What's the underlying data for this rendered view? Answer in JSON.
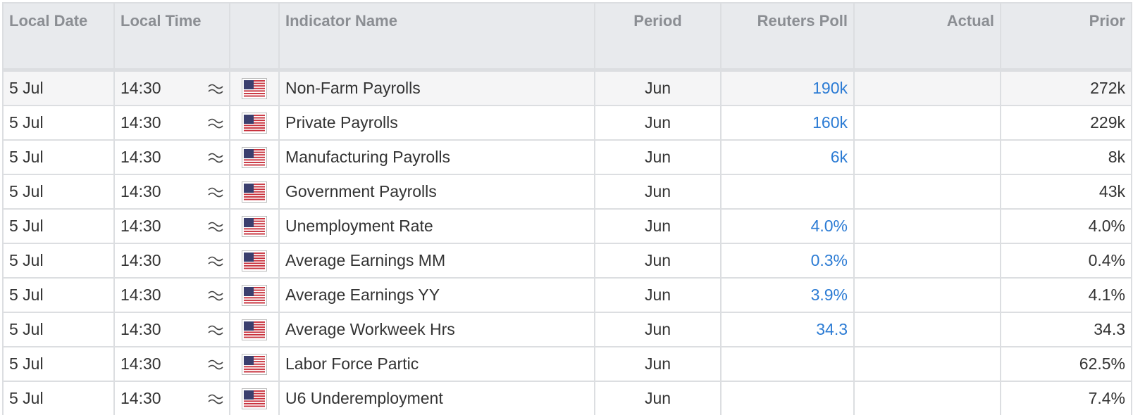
{
  "table": {
    "headers": [
      "Local Date",
      "Local Time",
      "Indicator Name",
      "Period",
      "Reuters Poll",
      "Actual",
      "Prior"
    ],
    "rows": [
      {
        "date": "5 Jul",
        "time": "14:30",
        "name": "Non-Farm Payrolls",
        "period": "Jun",
        "poll": "190k",
        "prior": "272k"
      },
      {
        "date": "5 Jul",
        "time": "14:30",
        "name": "Private Payrolls",
        "period": "Jun",
        "poll": "160k",
        "prior": "229k"
      },
      {
        "date": "5 Jul",
        "time": "14:30",
        "name": "Manufacturing Payrolls",
        "period": "Jun",
        "poll": "6k",
        "prior": "8k"
      },
      {
        "date": "5 Jul",
        "time": "14:30",
        "name": "Government Payrolls",
        "period": "Jun",
        "prior": "43k"
      },
      {
        "date": "5 Jul",
        "time": "14:30",
        "name": "Unemployment Rate",
        "period": "Jun",
        "poll": "4.0%",
        "prior": "4.0%"
      },
      {
        "date": "5 Jul",
        "time": "14:30",
        "name": "Average Earnings MM",
        "period": "Jun",
        "poll": "0.3%",
        "prior": "0.4%"
      },
      {
        "date": "5 Jul",
        "time": "14:30",
        "name": "Average Earnings YY",
        "period": "Jun",
        "poll": "3.9%",
        "prior": "4.1%"
      },
      {
        "date": "5 Jul",
        "time": "14:30",
        "name": "Average Workweek Hrs",
        "period": "Jun",
        "poll": "34.3",
        "prior": "34.3"
      },
      {
        "date": "5 Jul",
        "time": "14:30",
        "name": "Labor Force Partic",
        "period": "Jun",
        "prior": "62.5%"
      },
      {
        "date": "5 Jul",
        "time": "14:30",
        "name": "U6 Underemployment",
        "period": "Jun",
        "prior": "7.4%"
      }
    ]
  }
}
